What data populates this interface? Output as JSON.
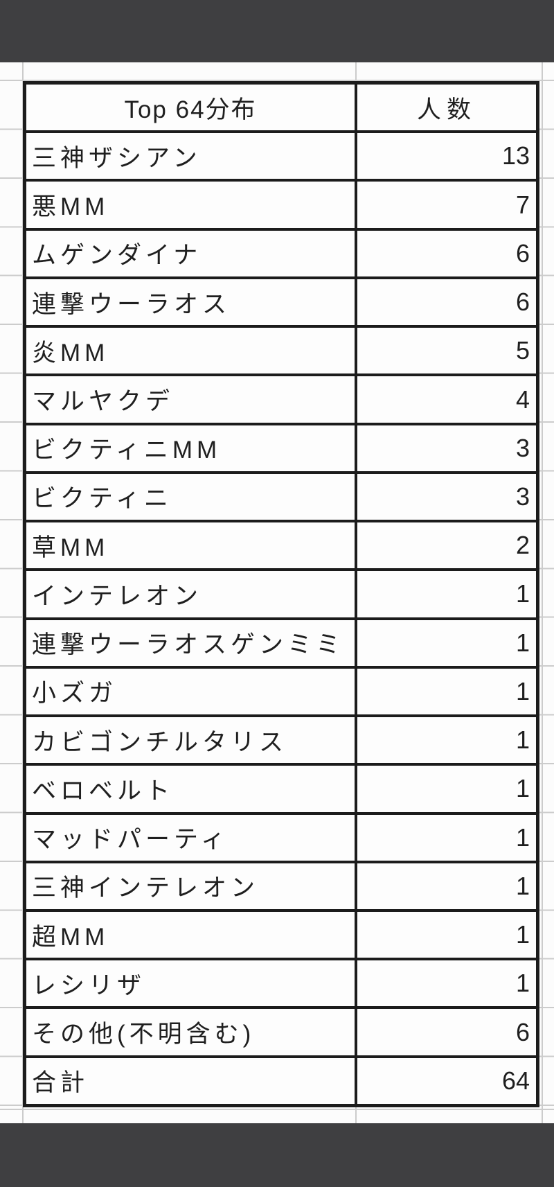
{
  "colors": {
    "letterbox": "#3f3f41",
    "grid_line": "#cccccc",
    "table_border": "#1c1c1c",
    "text": "#1f1f1f",
    "cell_background": "#fdfdfd"
  },
  "table": {
    "header": {
      "label": "Top 64分布",
      "count": "人数"
    },
    "rows": [
      {
        "label": "三神ザシアン",
        "count": "13"
      },
      {
        "label": "悪MM",
        "count": "7"
      },
      {
        "label": "ムゲンダイナ",
        "count": "6"
      },
      {
        "label": "連撃ウーラオス",
        "count": "6"
      },
      {
        "label": "炎MM",
        "count": "5"
      },
      {
        "label": "マルヤクデ",
        "count": "4"
      },
      {
        "label": "ビクティニMM",
        "count": "3"
      },
      {
        "label": "ビクティニ",
        "count": "3"
      },
      {
        "label": "草MM",
        "count": "2"
      },
      {
        "label": "インテレオン",
        "count": "1"
      },
      {
        "label": "連撃ウーラオスゲンミミ",
        "count": "1"
      },
      {
        "label": "小ズガ",
        "count": "1"
      },
      {
        "label": "カビゴンチルタリス",
        "count": "1"
      },
      {
        "label": "ベロベルト",
        "count": "1"
      },
      {
        "label": "マッドパーティ",
        "count": "1"
      },
      {
        "label": "三神インテレオン",
        "count": "1"
      },
      {
        "label": "超MM",
        "count": "1"
      },
      {
        "label": "レシリザ",
        "count": "1"
      },
      {
        "label": "その他(不明含む)",
        "count": "6"
      },
      {
        "label": "合計",
        "count": "64"
      }
    ]
  },
  "chart_data": {
    "type": "table",
    "title": "Top 64分布",
    "columns": [
      "Top 64分布",
      "人数"
    ],
    "categories": [
      "三神ザシアン",
      "悪MM",
      "ムゲンダイナ",
      "連撃ウーラオス",
      "炎MM",
      "マルヤクデ",
      "ビクティニMM",
      "ビクティニ",
      "草MM",
      "インテレオン",
      "連撃ウーラオスゲンミミ",
      "小ズガ",
      "カビゴンチルタリス",
      "ベロベルト",
      "マッドパーティ",
      "三神インテレオン",
      "超MM",
      "レシリザ",
      "その他(不明含む)"
    ],
    "values": [
      13,
      7,
      6,
      6,
      5,
      4,
      3,
      3,
      2,
      1,
      1,
      1,
      1,
      1,
      1,
      1,
      1,
      1,
      6
    ],
    "total_label": "合計",
    "total": 64
  }
}
